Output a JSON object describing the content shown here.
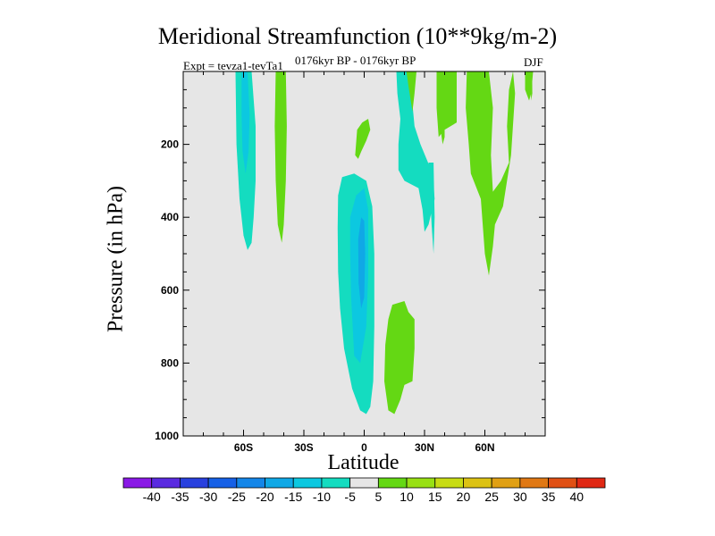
{
  "chart_data": {
    "type": "contour",
    "title": "Meridional Streamfunction (10**9kg/m-2)",
    "experiment": "Expt = tevza1-tevTa1",
    "subtitle": "0176kyr BP - 0176kyr BP",
    "season": "DJF",
    "xlabel": "Latitude",
    "ylabel": "Pressure (in hPa)",
    "xlim": [
      -90,
      90
    ],
    "ylim": [
      1000,
      0
    ],
    "x_ticks": [
      {
        "value": -60,
        "label": "60S"
      },
      {
        "value": -30,
        "label": "30S"
      },
      {
        "value": 0,
        "label": "0"
      },
      {
        "value": 30,
        "label": "30N"
      },
      {
        "value": 60,
        "label": "60N"
      }
    ],
    "y_ticks": [
      {
        "value": 200,
        "label": "200"
      },
      {
        "value": 400,
        "label": "400"
      },
      {
        "value": 600,
        "label": "600"
      },
      {
        "value": 800,
        "label": "800"
      },
      {
        "value": 1000,
        "label": "1000"
      }
    ],
    "background_color": "#e6e6e6",
    "colorbar": {
      "levels": [
        -40,
        -35,
        -30,
        -25,
        -20,
        -15,
        -10,
        -5,
        5,
        10,
        15,
        20,
        25,
        30,
        35,
        40
      ],
      "labels": [
        "-40",
        "-35",
        "-30",
        "-25",
        "-20",
        "-15",
        "-10",
        "-5",
        "5",
        "10",
        "15",
        "20",
        "25",
        "30",
        "35",
        "40"
      ],
      "colors": [
        "#8a19e6",
        "#5a2ae0",
        "#2840de",
        "#1660e6",
        "#1486e8",
        "#10a8e6",
        "#0cc8e0",
        "#14dcc0",
        "#e6e6e6",
        "#64d814",
        "#98e014",
        "#c8dc14",
        "#dcc214",
        "#e0a014",
        "#e07814",
        "#e05014",
        "#e02814"
      ]
    },
    "regions": [
      {
        "name": "neg-60s-outer",
        "value": -5,
        "color": "#14dcc0",
        "points": [
          [
            -64,
            0
          ],
          [
            -56,
            0
          ],
          [
            -54,
            150
          ],
          [
            -54,
            300
          ],
          [
            -55,
            400
          ],
          [
            -56,
            470
          ],
          [
            -58,
            490
          ],
          [
            -60,
            450
          ],
          [
            -62,
            350
          ],
          [
            -63.5,
            200
          ]
        ]
      },
      {
        "name": "neg-60s-inner",
        "value": -10,
        "color": "#0cc8e0",
        "points": [
          [
            -61,
            0
          ],
          [
            -58,
            0
          ],
          [
            -57,
            120
          ],
          [
            -57.5,
            220
          ],
          [
            -59,
            280
          ],
          [
            -60.5,
            220
          ],
          [
            -61,
            120
          ]
        ]
      },
      {
        "name": "pos-40s",
        "value": 5,
        "color": "#64d814",
        "points": [
          [
            -44,
            0
          ],
          [
            -39,
            0
          ],
          [
            -38.5,
            150
          ],
          [
            -39,
            300
          ],
          [
            -40,
            420
          ],
          [
            -41,
            470
          ],
          [
            -43,
            420
          ],
          [
            -44,
            300
          ],
          [
            -44.5,
            150
          ]
        ]
      },
      {
        "name": "neg-eq-outer",
        "value": -5,
        "color": "#14dcc0",
        "points": [
          [
            -13,
            340
          ],
          [
            -11,
            290
          ],
          [
            -5,
            280
          ],
          [
            1,
            300
          ],
          [
            4,
            370
          ],
          [
            5,
            500
          ],
          [
            5,
            700
          ],
          [
            4.5,
            850
          ],
          [
            3,
            920
          ],
          [
            1,
            940
          ],
          [
            -2,
            930
          ],
          [
            -6,
            870
          ],
          [
            -10,
            760
          ],
          [
            -12,
            650
          ],
          [
            -13,
            550
          ],
          [
            -13.2,
            430
          ]
        ]
      },
      {
        "name": "neg-eq-inner",
        "value": -10,
        "color": "#0cc8e0",
        "points": [
          [
            -7,
            400
          ],
          [
            -4,
            340
          ],
          [
            0,
            320
          ],
          [
            2,
            380
          ],
          [
            2,
            560
          ],
          [
            1,
            700
          ],
          [
            -2,
            800
          ],
          [
            -5,
            780
          ],
          [
            -6.5,
            620
          ],
          [
            -7,
            500
          ]
        ]
      },
      {
        "name": "neg-eq-core",
        "value": -15,
        "color": "#10a8e6",
        "points": [
          [
            -3,
            460
          ],
          [
            -1.5,
            400
          ],
          [
            0,
            410
          ],
          [
            0.5,
            500
          ],
          [
            0,
            620
          ],
          [
            -1.5,
            650
          ],
          [
            -2.8,
            580
          ]
        ]
      },
      {
        "name": "pos-eq-upper",
        "value": 5,
        "color": "#64d814",
        "points": [
          [
            -4.5,
            230
          ],
          [
            -3.5,
            160
          ],
          [
            -1,
            140
          ],
          [
            2,
            130
          ],
          [
            3,
            160
          ],
          [
            1,
            190
          ],
          [
            -1.5,
            220
          ],
          [
            -3,
            240
          ]
        ]
      },
      {
        "name": "pos-nh-lower",
        "value": 5,
        "color": "#64d814",
        "points": [
          [
            12,
            680
          ],
          [
            14,
            640
          ],
          [
            20,
            630
          ],
          [
            22,
            660
          ],
          [
            25,
            680
          ],
          [
            25,
            760
          ],
          [
            24,
            850
          ],
          [
            20,
            860
          ],
          [
            18,
            900
          ],
          [
            15,
            940
          ],
          [
            12,
            930
          ],
          [
            10,
            850
          ],
          [
            10.5,
            750
          ]
        ]
      },
      {
        "name": "neg-nh-upper",
        "value": -5,
        "color": "#14dcc0",
        "points": [
          [
            16,
            0
          ],
          [
            22,
            0
          ],
          [
            24,
            90
          ],
          [
            25,
            150
          ],
          [
            28,
            200
          ],
          [
            34,
            280
          ],
          [
            35,
            350
          ],
          [
            32,
            420
          ],
          [
            30,
            440
          ],
          [
            29,
            380
          ],
          [
            27,
            320
          ],
          [
            20,
            300
          ],
          [
            17,
            270
          ],
          [
            17,
            200
          ],
          [
            18,
            130
          ],
          [
            16.5,
            60
          ]
        ]
      },
      {
        "name": "neg-nh-strip",
        "value": -5,
        "color": "#14dcc0",
        "points": [
          [
            32,
            250
          ],
          [
            34.5,
            250
          ],
          [
            35,
            400
          ],
          [
            34.5,
            500
          ],
          [
            33.5,
            420
          ]
        ]
      },
      {
        "name": "pos-nh-top",
        "value": 5,
        "color": "#64d814",
        "points": [
          [
            21,
            0
          ],
          [
            26,
            0
          ],
          [
            25,
            60
          ],
          [
            24,
            110
          ],
          [
            22,
            40
          ]
        ]
      },
      {
        "name": "pos-36n",
        "value": 5,
        "color": "#64d814",
        "points": [
          [
            36,
            0
          ],
          [
            46,
            0
          ],
          [
            46,
            140
          ],
          [
            40,
            160
          ],
          [
            37,
            180
          ],
          [
            36,
            100
          ]
        ]
      },
      {
        "name": "pos-39n-small",
        "value": 5,
        "color": "#64d814",
        "points": [
          [
            38,
            160
          ],
          [
            40,
            150
          ],
          [
            40,
            180
          ],
          [
            39,
            200
          ]
        ]
      },
      {
        "name": "pos-60n",
        "value": 5,
        "color": "#64d814",
        "points": [
          [
            51,
            0
          ],
          [
            62,
            0
          ],
          [
            64,
            100
          ],
          [
            63,
            230
          ],
          [
            64,
            330
          ],
          [
            68,
            300
          ],
          [
            72,
            250
          ],
          [
            71,
            150
          ],
          [
            72,
            50
          ],
          [
            74,
            0
          ],
          [
            75,
            60
          ],
          [
            73,
            230
          ],
          [
            69,
            370
          ],
          [
            65,
            420
          ],
          [
            64,
            480
          ],
          [
            62,
            560
          ],
          [
            60,
            500
          ],
          [
            58,
            350
          ],
          [
            53,
            280
          ],
          [
            52,
            200
          ],
          [
            50.5,
            100
          ]
        ]
      },
      {
        "name": "pos-78n",
        "value": 5,
        "color": "#64d814",
        "points": [
          [
            80,
            0
          ],
          [
            84,
            0
          ],
          [
            83,
            60
          ],
          [
            82,
            80
          ],
          [
            80,
            50
          ]
        ]
      },
      {
        "name": "pos-83n",
        "value": 5,
        "color": "#64d814",
        "points": [
          [
            82.5,
            0
          ],
          [
            83.5,
            0
          ],
          [
            83.6,
            60
          ],
          [
            83,
            80
          ]
        ]
      }
    ]
  }
}
